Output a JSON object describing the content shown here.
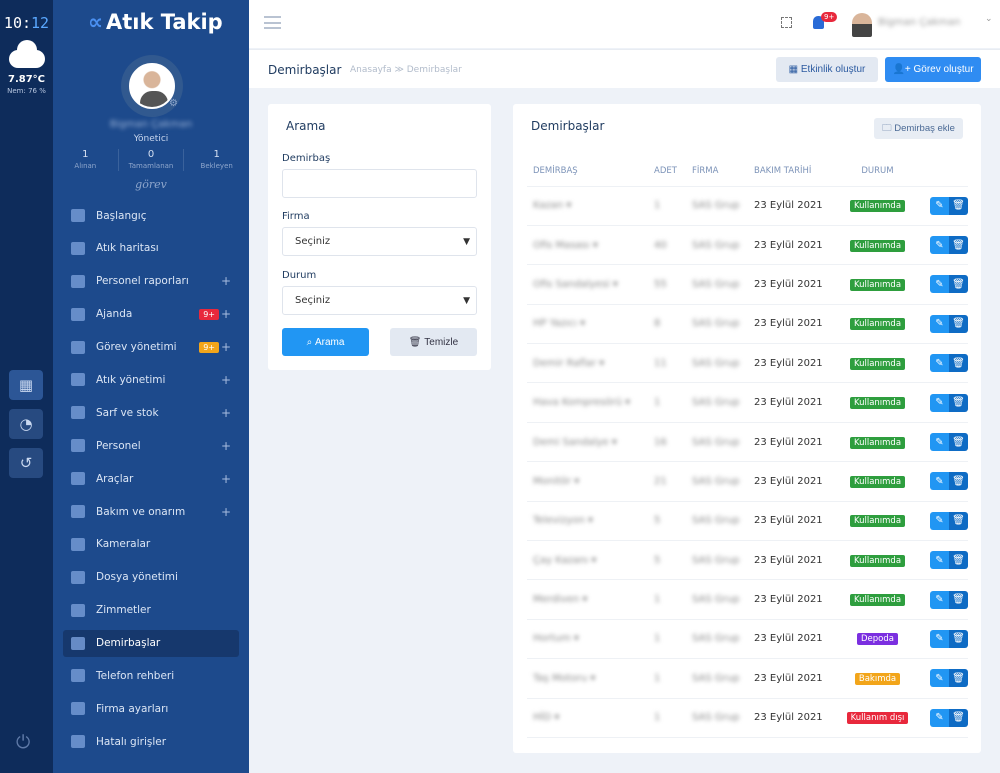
{
  "rail": {
    "clock_h": "10:",
    "clock_m": "12",
    "temperature": "7.87°C",
    "humidity": "Nem: 76 %",
    "weather_icon": "cloud-icon"
  },
  "sidebar": {
    "brand": "Atık Takip",
    "user_name": "Bigman Çakman",
    "role": "Yönetici",
    "stats": [
      {
        "value": "1",
        "label": "Alınan"
      },
      {
        "value": "0",
        "label": "Tamamlanan"
      },
      {
        "value": "1",
        "label": "Bekleyen"
      }
    ],
    "stats_caption": "görev",
    "items": [
      {
        "label": "Başlangıç",
        "icon": "dashboard-icon"
      },
      {
        "label": "Atık haritası",
        "icon": "map-icon"
      },
      {
        "label": "Personel raporları",
        "icon": "folder-user-icon",
        "plus": "+"
      },
      {
        "label": "Ajanda",
        "icon": "notebook-icon",
        "badge": "9+",
        "badge_color": "#e8283c",
        "plus": "+"
      },
      {
        "label": "Görev yönetimi",
        "icon": "list-icon",
        "badge": "9+",
        "badge_color": "#f2a51a",
        "plus": "+"
      },
      {
        "label": "Atık yönetimi",
        "icon": "biohazard-icon",
        "plus": "+"
      },
      {
        "label": "Sarf ve stok",
        "icon": "boxes-icon",
        "plus": "+"
      },
      {
        "label": "Personel",
        "icon": "users-icon",
        "plus": "+"
      },
      {
        "label": "Araçlar",
        "icon": "car-icon",
        "plus": "+"
      },
      {
        "label": "Bakım ve onarım",
        "icon": "gears-icon",
        "plus": "+"
      },
      {
        "label": "Kameralar",
        "icon": "camera-icon"
      },
      {
        "label": "Dosya yönetimi",
        "icon": "folder-tree-icon"
      },
      {
        "label": "Zimmetler",
        "icon": "route-icon"
      },
      {
        "label": "Demirbaşlar",
        "icon": "inventory-icon",
        "active": true
      },
      {
        "label": "Telefon rehberi",
        "icon": "address-book-icon"
      },
      {
        "label": "Firma ayarları",
        "icon": "sliders-icon"
      },
      {
        "label": "Hatalı girişler",
        "icon": "shield-icon"
      }
    ]
  },
  "topbar": {
    "notifications": "9+",
    "user_name": "Bigman Çakman"
  },
  "subheader": {
    "title": "Demirbaşlar",
    "breadcrumb": "Anasayfa ≫ Demirbaşlar",
    "event_button": "Etkinlik oluştur",
    "task_button": "Görev oluştur"
  },
  "search": {
    "title": "Arama",
    "field1_label": "Demirbaş",
    "field1_value": "",
    "field2_label": "Firma",
    "field2_value": "Seçiniz",
    "field3_label": "Durum",
    "field3_value": "Seçiniz",
    "search_button": "Arama",
    "clear_button": "Temizle"
  },
  "table": {
    "title": "Demirbaşlar",
    "add_button": "Demirbaş ekle",
    "columns": [
      "DEMİRBAŞ",
      "ADET",
      "FİRMA",
      "BAKIM TARİHİ",
      "DURUM"
    ],
    "status_colors": {
      "Kullanımda": "#2e9e3e",
      "Depoda": "#7b2fe0",
      "Bakımda": "#f2a51a",
      "Kullanım dışı": "#e8283c"
    },
    "rows": [
      {
        "name": "Kazan",
        "qty": "1",
        "firm": "SAS Grup",
        "date": "23 Eylül 2021",
        "status": "Kullanımda"
      },
      {
        "name": "Ofis Masası",
        "qty": "40",
        "firm": "SAS Grup",
        "date": "23 Eylül 2021",
        "status": "Kullanımda"
      },
      {
        "name": "Ofis Sandalyesi",
        "qty": "55",
        "firm": "SAS Grup",
        "date": "23 Eylül 2021",
        "status": "Kullanımda"
      },
      {
        "name": "HP Yazıcı",
        "qty": "8",
        "firm": "SAS Grup",
        "date": "23 Eylül 2021",
        "status": "Kullanımda"
      },
      {
        "name": "Demir Raflar",
        "qty": "11",
        "firm": "SAS Grup",
        "date": "23 Eylül 2021",
        "status": "Kullanımda"
      },
      {
        "name": "Hava Kompresörü",
        "qty": "1",
        "firm": "SAS Grup",
        "date": "23 Eylül 2021",
        "status": "Kullanımda"
      },
      {
        "name": "Demi Sandalye",
        "qty": "16",
        "firm": "SAS Grup",
        "date": "23 Eylül 2021",
        "status": "Kullanımda"
      },
      {
        "name": "Monitör",
        "qty": "21",
        "firm": "SAS Grup",
        "date": "23 Eylül 2021",
        "status": "Kullanımda"
      },
      {
        "name": "Televizyon",
        "qty": "5",
        "firm": "SAS Grup",
        "date": "23 Eylül 2021",
        "status": "Kullanımda"
      },
      {
        "name": "Çay Kazanı",
        "qty": "5",
        "firm": "SAS Grup",
        "date": "23 Eylül 2021",
        "status": "Kullanımda"
      },
      {
        "name": "Merdiven",
        "qty": "1",
        "firm": "SAS Grup",
        "date": "23 Eylül 2021",
        "status": "Kullanımda"
      },
      {
        "name": "Hortum",
        "qty": "1",
        "firm": "SAS Grup",
        "date": "23 Eylül 2021",
        "status": "Depoda"
      },
      {
        "name": "Taş Motoru",
        "qty": "1",
        "firm": "SAS Grup",
        "date": "23 Eylül 2021",
        "status": "Bakımda"
      },
      {
        "name": "HİD",
        "qty": "1",
        "firm": "SAS Grup",
        "date": "23 Eylül 2021",
        "status": "Kullanım dışı"
      }
    ]
  }
}
